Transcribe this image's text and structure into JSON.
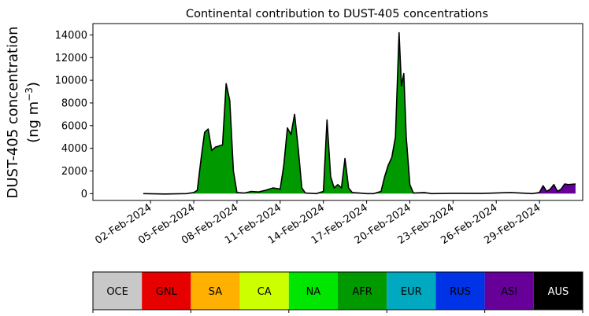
{
  "chart_data": {
    "type": "area",
    "title": "Continental contribution to DUST-405 concentrations",
    "ylabel_line1": "DUST-405 concentration",
    "ylabel_line2_prefix": "(ng m",
    "ylabel_line2_sup": "−3",
    "ylabel_line2_suffix": ")",
    "xlabel": "",
    "ylim": [
      -600,
      15000
    ],
    "yticks": [
      0,
      2000,
      4000,
      6000,
      8000,
      10000,
      12000,
      14000
    ],
    "xlim": [
      "2024-01-29",
      "2024-03-03"
    ],
    "xticks": [
      "02-Feb-2024",
      "05-Feb-2024",
      "08-Feb-2024",
      "11-Feb-2024",
      "14-Feb-2024",
      "17-Feb-2024",
      "20-Feb-2024",
      "23-Feb-2024",
      "26-Feb-2024",
      "29-Feb-2024"
    ],
    "series_order": [
      "AFR",
      "ASI"
    ],
    "series": [
      {
        "name": "AFR",
        "color": "#009900",
        "points": [
          [
            "2024-02-01 12:00",
            0
          ],
          [
            "2024-02-03 00:00",
            0
          ],
          [
            "2024-02-04 12:00",
            0
          ],
          [
            "2024-02-05 00:00",
            100
          ],
          [
            "2024-02-05 06:00",
            300
          ],
          [
            "2024-02-05 12:00",
            3000
          ],
          [
            "2024-02-05 18:00",
            5400
          ],
          [
            "2024-02-06 00:00",
            5700
          ],
          [
            "2024-02-06 06:00",
            3800
          ],
          [
            "2024-02-06 12:00",
            4100
          ],
          [
            "2024-02-06 18:00",
            4200
          ],
          [
            "2024-02-07 00:00",
            4300
          ],
          [
            "2024-02-07 06:00",
            9700
          ],
          [
            "2024-02-07 12:00",
            8200
          ],
          [
            "2024-02-07 18:00",
            2000
          ],
          [
            "2024-02-08 00:00",
            100
          ],
          [
            "2024-02-08 12:00",
            50
          ],
          [
            "2024-02-09 00:00",
            200
          ],
          [
            "2024-02-09 12:00",
            150
          ],
          [
            "2024-02-10 00:00",
            300
          ],
          [
            "2024-02-10 12:00",
            500
          ],
          [
            "2024-02-11 00:00",
            400
          ],
          [
            "2024-02-11 06:00",
            2500
          ],
          [
            "2024-02-11 12:00",
            5800
          ],
          [
            "2024-02-11 18:00",
            5200
          ],
          [
            "2024-02-12 00:00",
            7000
          ],
          [
            "2024-02-12 06:00",
            4000
          ],
          [
            "2024-02-12 12:00",
            500
          ],
          [
            "2024-02-12 18:00",
            50
          ],
          [
            "2024-02-13 12:00",
            0
          ],
          [
            "2024-02-14 00:00",
            200
          ],
          [
            "2024-02-14 06:00",
            6500
          ],
          [
            "2024-02-14 12:00",
            1500
          ],
          [
            "2024-02-14 18:00",
            500
          ],
          [
            "2024-02-15 00:00",
            800
          ],
          [
            "2024-02-15 06:00",
            500
          ],
          [
            "2024-02-15 12:00",
            3100
          ],
          [
            "2024-02-15 18:00",
            500
          ],
          [
            "2024-02-16 00:00",
            100
          ],
          [
            "2024-02-16 12:00",
            50
          ],
          [
            "2024-02-17 00:00",
            0
          ],
          [
            "2024-02-17 12:00",
            0
          ],
          [
            "2024-02-18 00:00",
            200
          ],
          [
            "2024-02-18 06:00",
            1500
          ],
          [
            "2024-02-18 12:00",
            2500
          ],
          [
            "2024-02-18 18:00",
            3200
          ],
          [
            "2024-02-19 00:00",
            5000
          ],
          [
            "2024-02-19 06:00",
            14200
          ],
          [
            "2024-02-19 10:00",
            9500
          ],
          [
            "2024-02-19 14:00",
            10600
          ],
          [
            "2024-02-19 18:00",
            5000
          ],
          [
            "2024-02-20 00:00",
            800
          ],
          [
            "2024-02-20 06:00",
            50
          ],
          [
            "2024-02-21 00:00",
            100
          ],
          [
            "2024-02-21 12:00",
            0
          ],
          [
            "2024-02-23 00:00",
            0
          ],
          [
            "2024-02-25 00:00",
            0
          ],
          [
            "2024-02-27 00:00",
            0
          ],
          [
            "2024-03-01 00:00",
            0
          ],
          [
            "2024-03-02 12:00",
            0
          ]
        ]
      },
      {
        "name": "ASI",
        "color": "#660099",
        "points": [
          [
            "2024-02-01 12:00",
            0
          ],
          [
            "2024-02-28 12:00",
            0
          ],
          [
            "2024-02-29 00:00",
            100
          ],
          [
            "2024-02-29 06:00",
            700
          ],
          [
            "2024-02-29 12:00",
            200
          ],
          [
            "2024-02-29 18:00",
            400
          ],
          [
            "2024-03-01 00:00",
            800
          ],
          [
            "2024-03-01 06:00",
            200
          ],
          [
            "2024-03-01 12:00",
            400
          ],
          [
            "2024-03-01 18:00",
            850
          ],
          [
            "2024-03-02 00:00",
            800
          ],
          [
            "2024-03-02 12:00",
            850
          ]
        ]
      }
    ],
    "total_line_color": "#000000",
    "total": [
      [
        "2024-02-01 12:00",
        0
      ],
      [
        "2024-02-03 00:00",
        -30
      ],
      [
        "2024-02-04 12:00",
        0
      ],
      [
        "2024-02-05 00:00",
        100
      ],
      [
        "2024-02-05 06:00",
        300
      ],
      [
        "2024-02-05 12:00",
        3000
      ],
      [
        "2024-02-05 18:00",
        5400
      ],
      [
        "2024-02-06 00:00",
        5700
      ],
      [
        "2024-02-06 06:00",
        3800
      ],
      [
        "2024-02-06 12:00",
        4100
      ],
      [
        "2024-02-06 18:00",
        4200
      ],
      [
        "2024-02-07 00:00",
        4300
      ],
      [
        "2024-02-07 06:00",
        9700
      ],
      [
        "2024-02-07 12:00",
        8200
      ],
      [
        "2024-02-07 18:00",
        2000
      ],
      [
        "2024-02-08 00:00",
        100
      ],
      [
        "2024-02-08 12:00",
        50
      ],
      [
        "2024-02-09 00:00",
        200
      ],
      [
        "2024-02-09 12:00",
        150
      ],
      [
        "2024-02-10 00:00",
        300
      ],
      [
        "2024-02-10 12:00",
        500
      ],
      [
        "2024-02-11 00:00",
        400
      ],
      [
        "2024-02-11 06:00",
        2500
      ],
      [
        "2024-02-11 12:00",
        5800
      ],
      [
        "2024-02-11 18:00",
        5200
      ],
      [
        "2024-02-12 00:00",
        7000
      ],
      [
        "2024-02-12 06:00",
        4000
      ],
      [
        "2024-02-12 12:00",
        500
      ],
      [
        "2024-02-12 18:00",
        50
      ],
      [
        "2024-02-13 12:00",
        0
      ],
      [
        "2024-02-14 00:00",
        200
      ],
      [
        "2024-02-14 06:00",
        6500
      ],
      [
        "2024-02-14 12:00",
        1500
      ],
      [
        "2024-02-14 18:00",
        500
      ],
      [
        "2024-02-15 00:00",
        800
      ],
      [
        "2024-02-15 06:00",
        500
      ],
      [
        "2024-02-15 12:00",
        3100
      ],
      [
        "2024-02-15 18:00",
        500
      ],
      [
        "2024-02-16 00:00",
        100
      ],
      [
        "2024-02-16 12:00",
        50
      ],
      [
        "2024-02-17 00:00",
        0
      ],
      [
        "2024-02-17 12:00",
        0
      ],
      [
        "2024-02-18 00:00",
        200
      ],
      [
        "2024-02-18 06:00",
        1500
      ],
      [
        "2024-02-18 12:00",
        2500
      ],
      [
        "2024-02-18 18:00",
        3200
      ],
      [
        "2024-02-19 00:00",
        5000
      ],
      [
        "2024-02-19 06:00",
        14200
      ],
      [
        "2024-02-19 10:00",
        9500
      ],
      [
        "2024-02-19 14:00",
        10600
      ],
      [
        "2024-02-19 18:00",
        5000
      ],
      [
        "2024-02-20 00:00",
        800
      ],
      [
        "2024-02-20 06:00",
        50
      ],
      [
        "2024-02-21 00:00",
        100
      ],
      [
        "2024-02-21 12:00",
        0
      ],
      [
        "2024-02-23 00:00",
        30
      ],
      [
        "2024-02-25 00:00",
        20
      ],
      [
        "2024-02-27 00:00",
        100
      ],
      [
        "2024-02-28 12:00",
        0
      ],
      [
        "2024-02-29 00:00",
        100
      ],
      [
        "2024-02-29 06:00",
        700
      ],
      [
        "2024-02-29 12:00",
        200
      ],
      [
        "2024-02-29 18:00",
        400
      ],
      [
        "2024-03-01 00:00",
        800
      ],
      [
        "2024-03-01 06:00",
        200
      ],
      [
        "2024-03-01 12:00",
        400
      ],
      [
        "2024-03-01 18:00",
        850
      ],
      [
        "2024-03-02 00:00",
        800
      ],
      [
        "2024-03-02 12:00",
        850
      ]
    ],
    "legend": [
      {
        "label": "OCE",
        "color": "#c8c8c8",
        "text_color": "#000000"
      },
      {
        "label": "GNL",
        "color": "#e60000",
        "text_color": "#000000"
      },
      {
        "label": "SA",
        "color": "#ffb000",
        "text_color": "#000000"
      },
      {
        "label": "CA",
        "color": "#ccff00",
        "text_color": "#000000"
      },
      {
        "label": "NA",
        "color": "#00e600",
        "text_color": "#000000"
      },
      {
        "label": "AFR",
        "color": "#009900",
        "text_color": "#000000"
      },
      {
        "label": "EUR",
        "color": "#00a8c0",
        "text_color": "#000000"
      },
      {
        "label": "RUS",
        "color": "#0033e6",
        "text_color": "#000000"
      },
      {
        "label": "ASI",
        "color": "#660099",
        "text_color": "#000000"
      },
      {
        "label": "AUS",
        "color": "#000000",
        "text_color": "#ffffff"
      }
    ],
    "legend_placement": "bottom",
    "grid": false
  }
}
